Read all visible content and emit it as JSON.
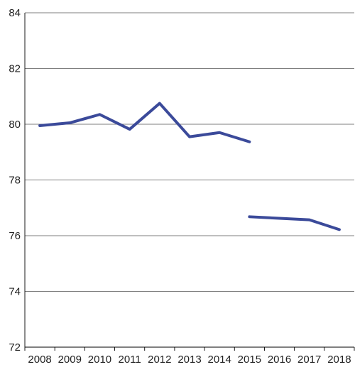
{
  "chart_data": {
    "type": "line",
    "title": "",
    "xlabel": "",
    "ylabel": "",
    "categories": [
      "2008",
      "2009",
      "2010",
      "2011",
      "2012",
      "2013",
      "2014",
      "2015",
      "2016",
      "2017",
      "2018"
    ],
    "ylim": [
      72,
      84
    ],
    "y_ticks": [
      72,
      74,
      76,
      78,
      80,
      82,
      84
    ],
    "grid": "horizontal",
    "legend": "none",
    "series": [
      {
        "color": "#3b4a9a",
        "segments": [
          [
            {
              "x": 2008,
              "y": 79.95
            },
            {
              "x": 2009,
              "y": 80.05
            },
            {
              "x": 2010,
              "y": 80.35
            },
            {
              "x": 2011,
              "y": 79.82
            },
            {
              "x": 2012,
              "y": 80.75
            },
            {
              "x": 2013,
              "y": 79.55
            },
            {
              "x": 2014,
              "y": 79.7
            },
            {
              "x": 2015,
              "y": 79.37
            }
          ],
          [
            {
              "x": 2015,
              "y": 76.68
            },
            {
              "x": 2017,
              "y": 76.57
            },
            {
              "x": 2018,
              "y": 76.22
            }
          ]
        ]
      }
    ]
  }
}
